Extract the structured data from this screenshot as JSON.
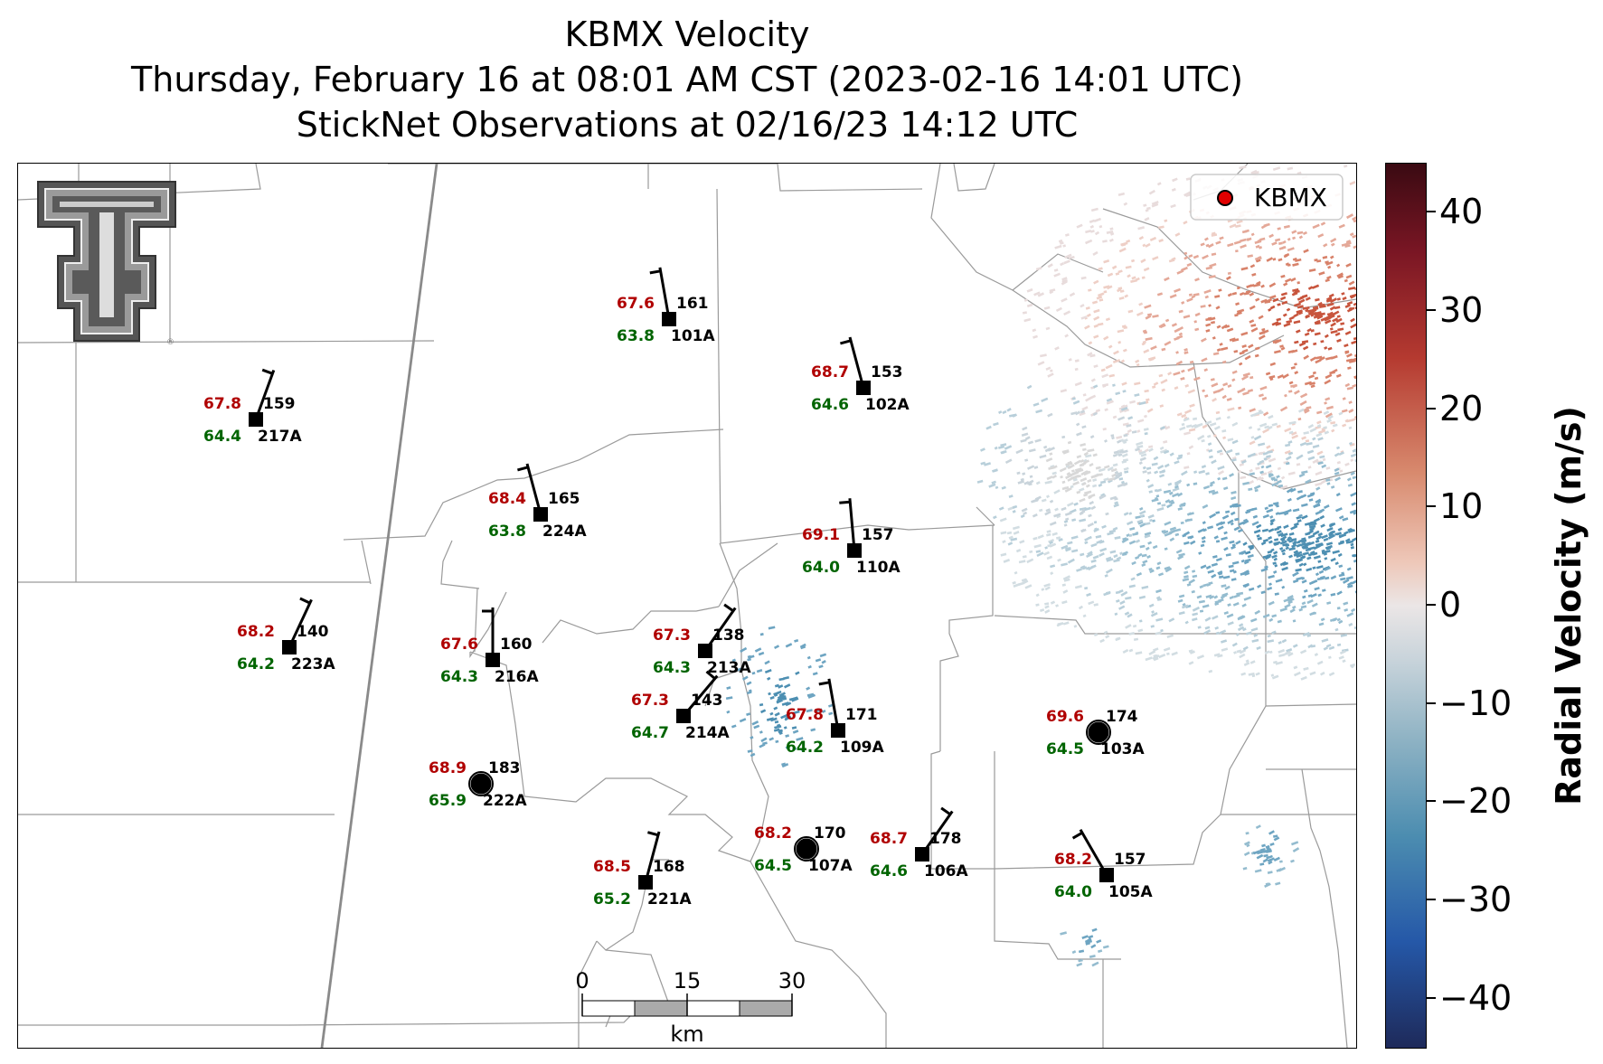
{
  "title": {
    "line1": "KBMX Velocity",
    "line2": "Thursday, February 16 at 08:01 AM CST (2023-02-16 14:01 UTC)",
    "line3": "StickNet Observations at 02/16/23 14:12 UTC"
  },
  "legend": {
    "label": "KBMX",
    "marker_color": "#e00000"
  },
  "colorbar": {
    "title": "Radial Velocity (m/s)",
    "ticks": [
      "40",
      "30",
      "20",
      "10",
      "0",
      "−10",
      "−20",
      "−30",
      "−40"
    ],
    "range": [
      -45,
      45
    ]
  },
  "scale_bar": {
    "ticks": [
      "0",
      "15",
      "30"
    ],
    "unit": "km"
  },
  "colors": {
    "temperature": "#b00000",
    "dewpoint": "#006400",
    "station": "#000000"
  },
  "stations": [
    {
      "id": "161",
      "temp": "67.6",
      "dew": "63.8",
      "label": "101A",
      "marker": "square"
    },
    {
      "id": "153",
      "temp": "68.7",
      "dew": "64.6",
      "label": "102A",
      "marker": "square"
    },
    {
      "id": "159",
      "temp": "67.8",
      "dew": "64.4",
      "label": "217A",
      "marker": "square"
    },
    {
      "id": "165",
      "temp": "68.4",
      "dew": "63.8",
      "label": "224A",
      "marker": "square"
    },
    {
      "id": "157",
      "temp": "69.1",
      "dew": "64.0",
      "label": "110A",
      "marker": "square"
    },
    {
      "id": "140",
      "temp": "68.2",
      "dew": "64.2",
      "label": "223A",
      "marker": "square"
    },
    {
      "id": "160",
      "temp": "67.6",
      "dew": "64.3",
      "label": "216A",
      "marker": "square"
    },
    {
      "id": "138",
      "temp": "67.3",
      "dew": "64.3",
      "label": "213A",
      "marker": "square"
    },
    {
      "id": "143",
      "temp": "67.3",
      "dew": "64.7",
      "label": "214A",
      "marker": "square"
    },
    {
      "id": "171",
      "temp": "67.8",
      "dew": "64.2",
      "label": "109A",
      "marker": "square"
    },
    {
      "id": "174",
      "temp": "69.6",
      "dew": "64.5",
      "label": "103A",
      "marker": "circle"
    },
    {
      "id": "183",
      "temp": "68.9",
      "dew": "65.9",
      "label": "222A",
      "marker": "circle"
    },
    {
      "id": "170",
      "temp": "68.2",
      "dew": "64.5",
      "label": "107A",
      "marker": "circle"
    },
    {
      "id": "178",
      "temp": "68.7",
      "dew": "64.6",
      "label": "106A",
      "marker": "square"
    },
    {
      "id": "168",
      "temp": "68.5",
      "dew": "65.2",
      "label": "221A",
      "marker": "square"
    },
    {
      "id": "157",
      "temp": "68.2",
      "dew": "64.0",
      "label": "105A",
      "marker": "square"
    }
  ]
}
